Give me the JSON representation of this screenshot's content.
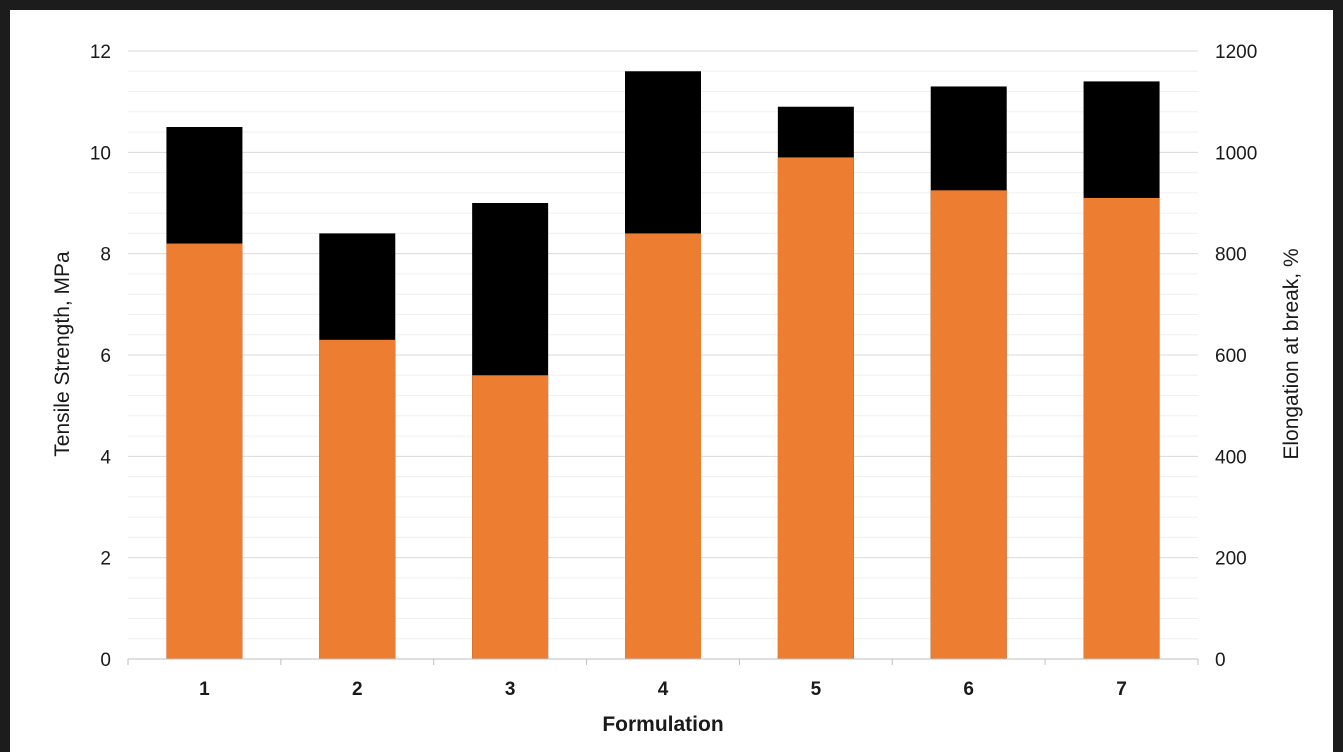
{
  "chart_data": {
    "type": "bar",
    "stacked": true,
    "dual_axis": true,
    "title": "",
    "xlabel": "Formulation",
    "ylabel": "Tensile Strength, MPa",
    "y2label": "Elongation at break, %",
    "ylim": [
      0,
      12
    ],
    "y2lim": [
      0,
      1200
    ],
    "yticks": [
      "0",
      "2",
      "4",
      "6",
      "8",
      "10",
      "12"
    ],
    "y2ticks": [
      "0",
      "200",
      "400",
      "600",
      "800",
      "1000",
      "1200"
    ],
    "grid": "horizontal major and minor",
    "categories": [
      "1",
      "2",
      "3",
      "4",
      "5",
      "6",
      "7"
    ],
    "series": [
      {
        "axis": "left",
        "color": "#ed7d31",
        "values": [
          8.2,
          6.3,
          5.6,
          8.4,
          9.9,
          9.25,
          9.1
        ]
      },
      {
        "axis": "right",
        "color": "#000000",
        "values": [
          1050,
          840,
          900,
          1160,
          1090,
          1130,
          1140
        ]
      }
    ]
  }
}
